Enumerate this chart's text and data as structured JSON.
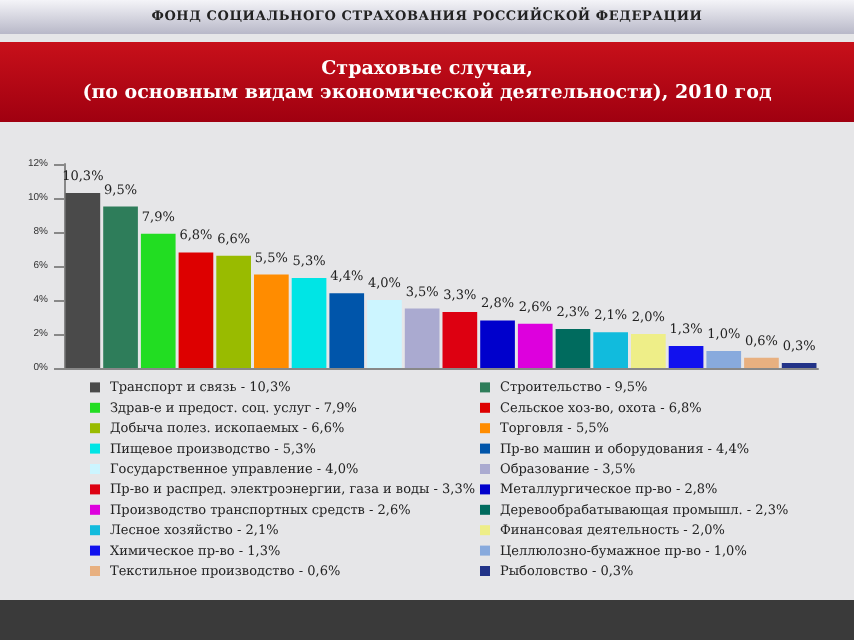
{
  "chart_data": {
    "type": "bar",
    "title": "Страховые случаи,\n(по основным видам экономической деятельности), 2010 год",
    "annotations": [
      "ФОНД СОЦИАЛЬНОГО СТРАХОВАНИЯ РОССИЙСКОЙ ФЕДЕРАЦИИ"
    ],
    "categories": [
      null,
      null,
      null,
      null,
      null,
      null,
      null,
      null,
      null,
      null,
      null,
      null,
      null,
      null,
      null,
      null,
      null,
      null,
      null,
      null
    ],
    "series": [
      {
        "name": "Транспорт и связь - 10,3%",
        "color": "#4a4a4a",
        "values": [
          10.3,
          null,
          null,
          null,
          null,
          null,
          null,
          null,
          null,
          null,
          null,
          null,
          null,
          null,
          null,
          null,
          null,
          null,
          null,
          null
        ],
        "value_labels": [
          "10,3%",
          null,
          null,
          null,
          null,
          null,
          null,
          null,
          null,
          null,
          null,
          null,
          null,
          null,
          null,
          null,
          null,
          null,
          null,
          null
        ]
      },
      {
        "name": "Строительство - 9,5%",
        "color": "#2e7d5a",
        "values": [
          null,
          9.5,
          null,
          null,
          null,
          null,
          null,
          null,
          null,
          null,
          null,
          null,
          null,
          null,
          null,
          null,
          null,
          null,
          null,
          null
        ],
        "value_labels": [
          null,
          "9,5%",
          null,
          null,
          null,
          null,
          null,
          null,
          null,
          null,
          null,
          null,
          null,
          null,
          null,
          null,
          null,
          null,
          null,
          null
        ]
      },
      {
        "name": "Здрав-е и предост. соц. услуг - 7,9%",
        "color": "#22dd22",
        "values": [
          null,
          null,
          7.9,
          null,
          null,
          null,
          null,
          null,
          null,
          null,
          null,
          null,
          null,
          null,
          null,
          null,
          null,
          null,
          null,
          null
        ],
        "value_labels": [
          null,
          null,
          "7,9%",
          null,
          null,
          null,
          null,
          null,
          null,
          null,
          null,
          null,
          null,
          null,
          null,
          null,
          null,
          null,
          null,
          null
        ]
      },
      {
        "name": "Сельское хоз-во, охота - 6,8%",
        "color": "#dd0000",
        "values": [
          null,
          null,
          null,
          6.8,
          null,
          null,
          null,
          null,
          null,
          null,
          null,
          null,
          null,
          null,
          null,
          null,
          null,
          null,
          null,
          null
        ],
        "value_labels": [
          null,
          null,
          null,
          "6,8%",
          null,
          null,
          null,
          null,
          null,
          null,
          null,
          null,
          null,
          null,
          null,
          null,
          null,
          null,
          null,
          null
        ]
      },
      {
        "name": "Добыча полез. ископаемых - 6,6%",
        "color": "#99bb00",
        "values": [
          null,
          null,
          null,
          null,
          6.6,
          null,
          null,
          null,
          null,
          null,
          null,
          null,
          null,
          null,
          null,
          null,
          null,
          null,
          null,
          null
        ],
        "value_labels": [
          null,
          null,
          null,
          null,
          "6,6%",
          null,
          null,
          null,
          null,
          null,
          null,
          null,
          null,
          null,
          null,
          null,
          null,
          null,
          null,
          null
        ]
      },
      {
        "name": "Торговля - 5,5%",
        "color": "#ff8c00",
        "values": [
          null,
          null,
          null,
          null,
          null,
          5.5,
          null,
          null,
          null,
          null,
          null,
          null,
          null,
          null,
          null,
          null,
          null,
          null,
          null,
          null
        ],
        "value_labels": [
          null,
          null,
          null,
          null,
          null,
          "5,5%",
          null,
          null,
          null,
          null,
          null,
          null,
          null,
          null,
          null,
          null,
          null,
          null,
          null,
          null
        ]
      },
      {
        "name": "Пищевое производство - 5,3%",
        "color": "#00e5e5",
        "values": [
          null,
          null,
          null,
          null,
          null,
          null,
          5.3,
          null,
          null,
          null,
          null,
          null,
          null,
          null,
          null,
          null,
          null,
          null,
          null,
          null
        ],
        "value_labels": [
          null,
          null,
          null,
          null,
          null,
          null,
          "5,3%",
          null,
          null,
          null,
          null,
          null,
          null,
          null,
          null,
          null,
          null,
          null,
          null,
          null
        ]
      },
      {
        "name": "Пр-во машин и оборудования - 4,4%",
        "color": "#0055aa",
        "values": [
          null,
          null,
          null,
          null,
          null,
          null,
          null,
          4.4,
          null,
          null,
          null,
          null,
          null,
          null,
          null,
          null,
          null,
          null,
          null,
          null
        ],
        "value_labels": [
          null,
          null,
          null,
          null,
          null,
          null,
          null,
          "4,4%",
          null,
          null,
          null,
          null,
          null,
          null,
          null,
          null,
          null,
          null,
          null,
          null
        ]
      },
      {
        "name": "Государственное управление - 4,0%",
        "color": "#ccf5ff",
        "values": [
          null,
          null,
          null,
          null,
          null,
          null,
          null,
          null,
          4.0,
          null,
          null,
          null,
          null,
          null,
          null,
          null,
          null,
          null,
          null,
          null
        ],
        "value_labels": [
          null,
          null,
          null,
          null,
          null,
          null,
          null,
          null,
          "4,0%",
          null,
          null,
          null,
          null,
          null,
          null,
          null,
          null,
          null,
          null,
          null
        ]
      },
      {
        "name": "Образование - 3,5%",
        "color": "#aaaad0",
        "values": [
          null,
          null,
          null,
          null,
          null,
          null,
          null,
          null,
          null,
          3.5,
          null,
          null,
          null,
          null,
          null,
          null,
          null,
          null,
          null,
          null
        ],
        "value_labels": [
          null,
          null,
          null,
          null,
          null,
          null,
          null,
          null,
          null,
          "3,5%",
          null,
          null,
          null,
          null,
          null,
          null,
          null,
          null,
          null,
          null
        ]
      },
      {
        "name": "Пр-во и распред. электроэнергии, газа и воды - 3,3%",
        "color": "#dd0011",
        "values": [
          null,
          null,
          null,
          null,
          null,
          null,
          null,
          null,
          null,
          null,
          3.3,
          null,
          null,
          null,
          null,
          null,
          null,
          null,
          null,
          null
        ],
        "value_labels": [
          null,
          null,
          null,
          null,
          null,
          null,
          null,
          null,
          null,
          null,
          "3,3%",
          null,
          null,
          null,
          null,
          null,
          null,
          null,
          null,
          null
        ]
      },
      {
        "name": "Металлургическое пр-во - 2,8%",
        "color": "#0000cc",
        "values": [
          null,
          null,
          null,
          null,
          null,
          null,
          null,
          null,
          null,
          null,
          null,
          2.8,
          null,
          null,
          null,
          null,
          null,
          null,
          null,
          null
        ],
        "value_labels": [
          null,
          null,
          null,
          null,
          null,
          null,
          null,
          null,
          null,
          null,
          null,
          "2,8%",
          null,
          null,
          null,
          null,
          null,
          null,
          null,
          null
        ]
      },
      {
        "name": "Производство транспортных средств - 2,6%",
        "color": "#dd00dd",
        "values": [
          null,
          null,
          null,
          null,
          null,
          null,
          null,
          null,
          null,
          null,
          null,
          null,
          2.6,
          null,
          null,
          null,
          null,
          null,
          null,
          null
        ],
        "value_labels": [
          null,
          null,
          null,
          null,
          null,
          null,
          null,
          null,
          null,
          null,
          null,
          null,
          "2,6%",
          null,
          null,
          null,
          null,
          null,
          null,
          null
        ]
      },
      {
        "name": "Деревообрабатывающая промышл. - 2,3%",
        "color": "#006b5e",
        "values": [
          null,
          null,
          null,
          null,
          null,
          null,
          null,
          null,
          null,
          null,
          null,
          null,
          null,
          2.3,
          null,
          null,
          null,
          null,
          null,
          null
        ],
        "value_labels": [
          null,
          null,
          null,
          null,
          null,
          null,
          null,
          null,
          null,
          null,
          null,
          null,
          null,
          "2,3%",
          null,
          null,
          null,
          null,
          null,
          null
        ]
      },
      {
        "name": "Лесное хозяйство - 2,1%",
        "color": "#11bbdd",
        "values": [
          null,
          null,
          null,
          null,
          null,
          null,
          null,
          null,
          null,
          null,
          null,
          null,
          null,
          null,
          2.1,
          null,
          null,
          null,
          null,
          null
        ],
        "value_labels": [
          null,
          null,
          null,
          null,
          null,
          null,
          null,
          null,
          null,
          null,
          null,
          null,
          null,
          null,
          "2,1%",
          null,
          null,
          null,
          null,
          null
        ]
      },
      {
        "name": "Финансовая деятельность - 2,0%",
        "color": "#eeee88",
        "values": [
          null,
          null,
          null,
          null,
          null,
          null,
          null,
          null,
          null,
          null,
          null,
          null,
          null,
          null,
          null,
          2.0,
          null,
          null,
          null,
          null
        ],
        "value_labels": [
          null,
          null,
          null,
          null,
          null,
          null,
          null,
          null,
          null,
          null,
          null,
          null,
          null,
          null,
          null,
          "2,0%",
          null,
          null,
          null,
          null
        ]
      },
      {
        "name": "Химическое пр-во - 1,3%",
        "color": "#1111ee",
        "values": [
          null,
          null,
          null,
          null,
          null,
          null,
          null,
          null,
          null,
          null,
          null,
          null,
          null,
          null,
          null,
          null,
          1.3,
          null,
          null,
          null
        ],
        "value_labels": [
          null,
          null,
          null,
          null,
          null,
          null,
          null,
          null,
          null,
          null,
          null,
          null,
          null,
          null,
          null,
          null,
          "1,3%",
          null,
          null,
          null
        ]
      },
      {
        "name": "Целлюлозно-бумажное пр-во - 1,0%",
        "color": "#88aadd",
        "values": [
          null,
          null,
          null,
          null,
          null,
          null,
          null,
          null,
          null,
          null,
          null,
          null,
          null,
          null,
          null,
          null,
          null,
          1.0,
          null,
          null
        ],
        "value_labels": [
          null,
          null,
          null,
          null,
          null,
          null,
          null,
          null,
          null,
          null,
          null,
          null,
          null,
          null,
          null,
          null,
          null,
          "1,0%",
          null,
          null
        ]
      },
      {
        "name": "Текстильное производство - 0,6%",
        "color": "#e8b080",
        "values": [
          null,
          null,
          null,
          null,
          null,
          null,
          null,
          null,
          null,
          null,
          null,
          null,
          null,
          null,
          null,
          null,
          null,
          null,
          0.6,
          null
        ],
        "value_labels": [
          null,
          null,
          null,
          null,
          null,
          null,
          null,
          null,
          null,
          null,
          null,
          null,
          null,
          null,
          null,
          null,
          null,
          null,
          "0,6%",
          null
        ]
      },
      {
        "name": "Рыболовство - 0,3%",
        "color": "#223388",
        "values": [
          null,
          null,
          null,
          null,
          null,
          null,
          null,
          null,
          null,
          null,
          null,
          null,
          null,
          null,
          null,
          null,
          null,
          null,
          null,
          0.3
        ],
        "value_labels": [
          null,
          null,
          null,
          null,
          null,
          null,
          null,
          null,
          null,
          null,
          null,
          null,
          null,
          null,
          null,
          null,
          null,
          null,
          null,
          "0,3%"
        ]
      }
    ],
    "ylim": [
      0,
      12
    ],
    "yticks": [
      {
        "value": 0,
        "label": "0%"
      },
      {
        "value": 2,
        "label": "2%"
      },
      {
        "value": 4,
        "label": "4%"
      },
      {
        "value": 6,
        "label": "6%"
      },
      {
        "value": 8,
        "label": "8%"
      },
      {
        "value": 10,
        "label": "10%"
      },
      {
        "value": 12,
        "label": "12%"
      }
    ],
    "grid": false,
    "legend": "bottom"
  }
}
